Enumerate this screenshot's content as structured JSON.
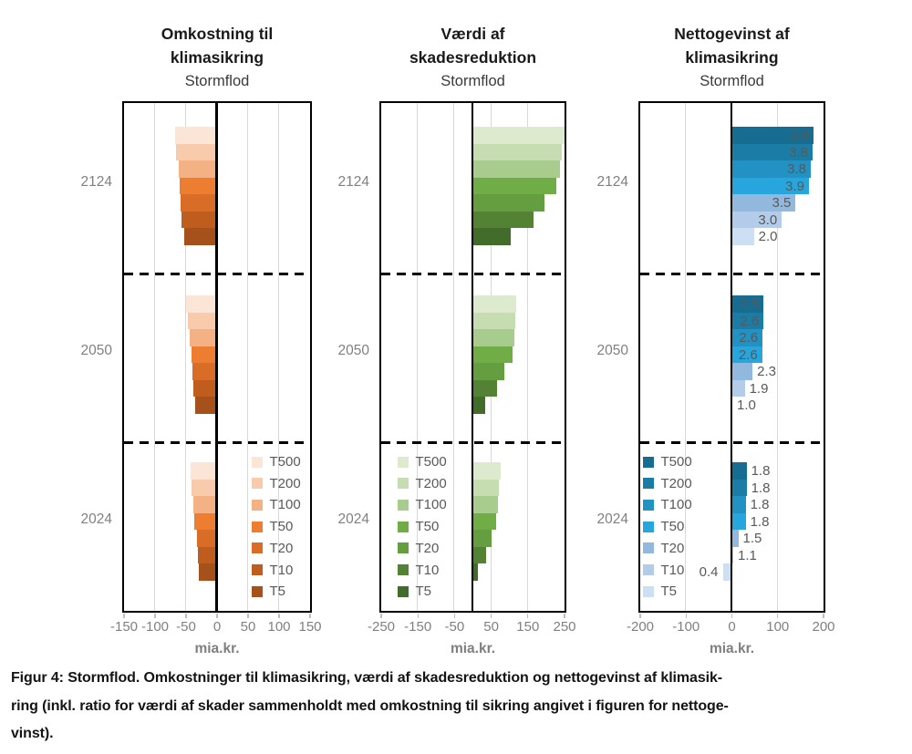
{
  "figure": {
    "caption_lines": [
      "Figur 4: Stormflod. Omkostninger til klimasikring, værdi af skadesreduktion og nettogevinst af klimasik-",
      "ring (inkl. ratio for værdi af skader sammenholdt med omkostning til sikring angivet i figuren for nettoge-",
      "vinst)."
    ]
  },
  "chart_data": [
    {
      "type": "bar",
      "orientation": "horizontal",
      "title_lines": [
        "Omkostning til",
        "klimasikring"
      ],
      "subtitle": "Stormflod",
      "xlabel": "mia.kr.",
      "xlim": [
        -150,
        150
      ],
      "xticks": [
        -150,
        -100,
        -50,
        0,
        50,
        100,
        150
      ],
      "gridlines": [
        -100,
        -50,
        50,
        100
      ],
      "categories": [
        "T500",
        "T200",
        "T100",
        "T50",
        "T20",
        "T10",
        "T5"
      ],
      "palette": [
        "#FBE5D6",
        "#F8CBAD",
        "#F4B183",
        "#ED7D31",
        "#D96D28",
        "#BF5D1E",
        "#A6511B"
      ],
      "legend_position": "bottom-right",
      "groups": [
        {
          "label": "2124",
          "values": [
            -67,
            -65,
            -61,
            -59,
            -58,
            -56,
            -52
          ]
        },
        {
          "label": "2050",
          "values": [
            -49,
            -46,
            -43,
            -41,
            -39,
            -37,
            -34
          ]
        },
        {
          "label": "2024",
          "values": [
            -42,
            -40,
            -38,
            -36,
            -32,
            -30,
            -28
          ]
        }
      ]
    },
    {
      "type": "bar",
      "orientation": "horizontal",
      "title_lines": [
        "Værdi af",
        "skadesreduktion"
      ],
      "subtitle": "Stormflod",
      "xlabel": "mia.kr.",
      "xlim": [
        -250,
        250
      ],
      "xticks": [
        -250,
        -150,
        -50,
        50,
        150,
        250
      ],
      "gridlines": [
        -150,
        -50,
        50,
        150
      ],
      "categories": [
        "T500",
        "T200",
        "T100",
        "T50",
        "T20",
        "T10",
        "T5"
      ],
      "palette": [
        "#DDEACE",
        "#C6DDB2",
        "#A7CC8E",
        "#70AD47",
        "#659E41",
        "#548235",
        "#426C29"
      ],
      "legend_position": "bottom-left",
      "groups": [
        {
          "label": "2124",
          "values": [
            250,
            245,
            238,
            230,
            197,
            166,
            104
          ]
        },
        {
          "label": "2050",
          "values": [
            120,
            118,
            114,
            110,
            88,
            67,
            36
          ]
        },
        {
          "label": "2024",
          "values": [
            77,
            73,
            70,
            64,
            53,
            38,
            15
          ]
        }
      ]
    },
    {
      "type": "bar",
      "orientation": "horizontal",
      "title_lines": [
        "Nettogevinst af",
        "klimasikring"
      ],
      "subtitle": "Stormflod",
      "xlabel": "mia.kr.",
      "xlim": [
        -200,
        200
      ],
      "xticks": [
        -200,
        -100,
        0,
        100,
        200
      ],
      "gridlines": [
        -100,
        100
      ],
      "categories": [
        "T500",
        "T200",
        "T100",
        "T50",
        "T20",
        "T10",
        "T5"
      ],
      "palette": [
        "#176C92",
        "#1B7DA6",
        "#2192C3",
        "#27A5DD",
        "#92B9DD",
        "#B3CCE9",
        "#CDDFF2"
      ],
      "legend_position": "bottom-left",
      "groups": [
        {
          "label": "2124",
          "values": [
            180,
            177,
            173,
            169,
            140,
            110,
            49
          ],
          "bar_labels": [
            "3.6",
            "3.8",
            "3.8",
            "3.9",
            "3.5",
            "3.0",
            "2.0"
          ]
        },
        {
          "label": "2050",
          "values": [
            70,
            70,
            68,
            67,
            46,
            29,
            2
          ],
          "bar_labels": [
            "2.5",
            "2.6",
            "2.6",
            "2.6",
            "2.3",
            "1.9",
            "1.0"
          ]
        },
        {
          "label": "2024",
          "values": [
            33,
            33,
            31,
            31,
            15,
            4,
            -17
          ],
          "bar_labels": [
            "1.8",
            "1.8",
            "1.8",
            "1.8",
            "1.5",
            "1.1",
            "0.4"
          ]
        }
      ]
    }
  ]
}
